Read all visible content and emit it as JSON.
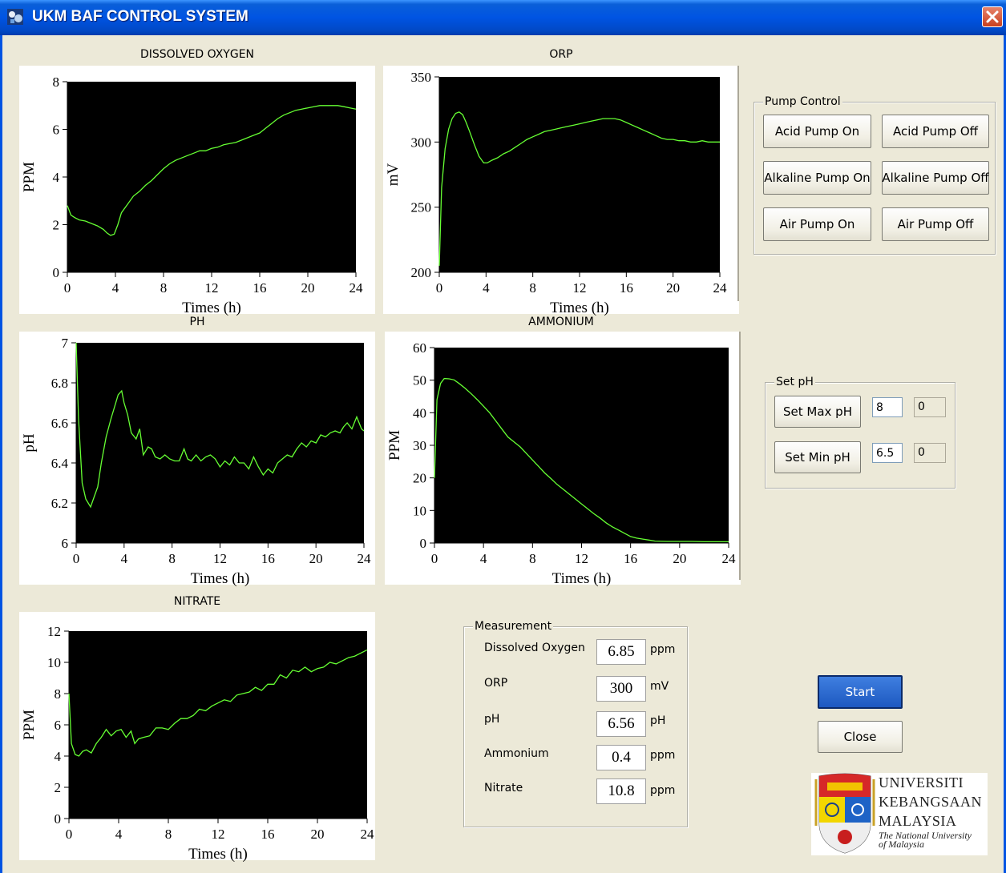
{
  "window": {
    "title": "UKM BAF CONTROL SYSTEM"
  },
  "chart_data": [
    {
      "id": "do",
      "type": "line",
      "title": "DISSOLVED OXYGEN",
      "xlabel": "Times (h)",
      "ylabel": "PPM",
      "xlim": [
        0,
        24
      ],
      "ylim": [
        0,
        8
      ],
      "xticks": [
        0,
        4,
        8,
        12,
        16,
        20,
        24
      ],
      "yticks": [
        0,
        2,
        4,
        6,
        8
      ],
      "line_color": "#66ff33",
      "background": "#000000",
      "series": [
        {
          "x": [
            0,
            0.3,
            0.6,
            1,
            1.5,
            2,
            2.5,
            3,
            3.3,
            3.6,
            3.9,
            4.2,
            4.5,
            5,
            5.5,
            6,
            6.5,
            7,
            7.5,
            8,
            8.5,
            9,
            9.5,
            10,
            10.5,
            11,
            11.5,
            12,
            12.5,
            13,
            13.5,
            14,
            14.5,
            15,
            15.5,
            16,
            16.5,
            17,
            17.5,
            18,
            18.5,
            19,
            19.5,
            20,
            20.5,
            21,
            21.5,
            22,
            22.5,
            23,
            23.5,
            24
          ],
          "y": [
            2.8,
            2.4,
            2.3,
            2.2,
            2.15,
            2.05,
            1.95,
            1.8,
            1.65,
            1.55,
            1.6,
            2,
            2.5,
            2.85,
            3.2,
            3.4,
            3.65,
            3.85,
            4.1,
            4.35,
            4.55,
            4.7,
            4.8,
            4.9,
            5.0,
            5.1,
            5.1,
            5.2,
            5.25,
            5.35,
            5.4,
            5.45,
            5.55,
            5.65,
            5.75,
            5.85,
            6.05,
            6.25,
            6.45,
            6.6,
            6.7,
            6.8,
            6.85,
            6.9,
            6.95,
            7.0,
            7.0,
            7.0,
            7.0,
            6.95,
            6.9,
            6.85
          ]
        }
      ]
    },
    {
      "id": "orp",
      "type": "line",
      "title": "ORP",
      "xlabel": "Times (h)",
      "ylabel": "mV",
      "xlim": [
        0,
        24
      ],
      "ylim": [
        200,
        350
      ],
      "xticks": [
        0,
        4,
        8,
        12,
        16,
        20,
        24
      ],
      "yticks": [
        200,
        250,
        300,
        350
      ],
      "line_color": "#66ff33",
      "background": "#000000",
      "series": [
        {
          "x": [
            0,
            0.2,
            0.5,
            0.8,
            1.1,
            1.4,
            1.7,
            2,
            2.3,
            2.6,
            3,
            3.4,
            3.8,
            4.1,
            4.5,
            5,
            5.5,
            6,
            6.5,
            7,
            7.5,
            8,
            8.5,
            9,
            9.5,
            10,
            10.5,
            11,
            11.5,
            12,
            12.5,
            13,
            13.5,
            14,
            14.5,
            15,
            15.5,
            16,
            16.5,
            17,
            17.5,
            18,
            18.5,
            19,
            19.5,
            20,
            20.5,
            21,
            21.5,
            22,
            22.5,
            23,
            23.5,
            24
          ],
          "y": [
            205,
            265,
            295,
            310,
            318,
            322,
            323,
            321,
            315,
            308,
            298,
            289,
            284,
            284,
            286,
            288,
            291,
            293,
            296,
            299,
            302,
            304,
            306,
            308,
            309,
            310,
            311,
            312,
            313,
            314,
            315,
            316,
            317,
            318,
            318,
            318,
            317,
            315,
            313,
            311,
            309,
            307,
            305,
            303,
            302,
            302,
            301,
            301,
            300,
            300,
            301,
            300,
            300,
            300
          ]
        }
      ]
    },
    {
      "id": "ph",
      "type": "line",
      "title": "PH",
      "xlabel": "Times (h)",
      "ylabel": "pH",
      "xlim": [
        0,
        24
      ],
      "ylim": [
        6,
        7
      ],
      "xticks": [
        0,
        4,
        8,
        12,
        16,
        20,
        24
      ],
      "yticks": [
        6,
        6.2,
        6.4,
        6.6,
        6.8,
        7
      ],
      "line_color": "#66ff33",
      "background": "#000000",
      "series": [
        {
          "x": [
            0,
            0.2,
            0.5,
            0.8,
            1.2,
            1.5,
            1.8,
            2.1,
            2.5,
            2.9,
            3.2,
            3.5,
            3.8,
            4,
            4.3,
            4.6,
            5,
            5.3,
            5.6,
            6,
            6.3,
            6.6,
            7,
            7.4,
            7.8,
            8.2,
            8.6,
            9,
            9.3,
            9.6,
            10,
            10.4,
            10.8,
            11.2,
            11.6,
            12,
            12.4,
            12.8,
            13.2,
            13.6,
            14,
            14.4,
            14.8,
            15.2,
            15.6,
            16,
            16.4,
            16.8,
            17.2,
            17.6,
            18,
            18.4,
            18.8,
            19.2,
            19.6,
            20,
            20.4,
            20.8,
            21.2,
            21.6,
            22,
            22.3,
            22.6,
            23,
            23.4,
            23.8,
            24
          ],
          "y": [
            7,
            6.62,
            6.3,
            6.22,
            6.18,
            6.23,
            6.28,
            6.4,
            6.53,
            6.62,
            6.68,
            6.74,
            6.76,
            6.7,
            6.64,
            6.55,
            6.52,
            6.57,
            6.44,
            6.48,
            6.47,
            6.43,
            6.42,
            6.44,
            6.42,
            6.41,
            6.41,
            6.47,
            6.42,
            6.41,
            6.44,
            6.41,
            6.43,
            6.44,
            6.42,
            6.38,
            6.41,
            6.39,
            6.43,
            6.4,
            6.4,
            6.37,
            6.43,
            6.38,
            6.34,
            6.37,
            6.35,
            6.4,
            6.42,
            6.44,
            6.43,
            6.47,
            6.5,
            6.48,
            6.51,
            6.5,
            6.54,
            6.53,
            6.55,
            6.56,
            6.55,
            6.58,
            6.6,
            6.57,
            6.63,
            6.57,
            6.56
          ]
        }
      ]
    },
    {
      "id": "ammonium",
      "type": "line",
      "title": "AMMONIUM",
      "xlabel": "Times (h)",
      "ylabel": "PPM",
      "xlim": [
        0,
        24
      ],
      "ylim": [
        0,
        60
      ],
      "xticks": [
        0,
        4,
        8,
        12,
        16,
        20,
        24
      ],
      "yticks": [
        0,
        10,
        20,
        30,
        40,
        50,
        60
      ],
      "line_color": "#66ff33",
      "background": "#000000",
      "series": [
        {
          "x": [
            0,
            0.2,
            0.5,
            0.8,
            1.2,
            1.6,
            2,
            2.5,
            3,
            3.5,
            4,
            4.5,
            5,
            5.5,
            6,
            6.5,
            7,
            7.5,
            8,
            8.5,
            9,
            9.5,
            10,
            10.5,
            11,
            11.5,
            12,
            12.5,
            13,
            13.5,
            14,
            14.5,
            15,
            15.5,
            16,
            16.5,
            17,
            17.5,
            18,
            19,
            20,
            21,
            22,
            23,
            24
          ],
          "y": [
            20,
            44,
            49,
            50.5,
            50.4,
            50.1,
            49,
            47.5,
            45.8,
            44,
            42,
            40,
            37.5,
            35,
            32.5,
            31,
            29.5,
            27.5,
            25.5,
            23.5,
            21.5,
            19.8,
            18,
            16.5,
            15,
            13.5,
            12,
            10.5,
            9,
            7.7,
            6.2,
            5,
            4,
            3,
            2,
            1.5,
            1.2,
            0.9,
            0.6,
            0.5,
            0.5,
            0.5,
            0.4,
            0.4,
            0.4
          ]
        }
      ]
    },
    {
      "id": "nitrate",
      "type": "line",
      "title": "NITRATE",
      "xlabel": "Times (h)",
      "ylabel": "PPM",
      "xlim": [
        0,
        24
      ],
      "ylim": [
        0,
        12
      ],
      "xticks": [
        0,
        4,
        8,
        12,
        16,
        20,
        24
      ],
      "yticks": [
        0,
        2,
        4,
        6,
        8,
        10,
        12
      ],
      "line_color": "#66ff33",
      "background": "#000000",
      "series": [
        {
          "x": [
            0,
            0.2,
            0.5,
            0.8,
            1.1,
            1.4,
            1.8,
            2.2,
            2.6,
            3,
            3.4,
            3.8,
            4.2,
            4.6,
            5,
            5.3,
            5.6,
            6,
            6.5,
            7,
            7.5,
            8,
            8.5,
            9,
            9.5,
            10,
            10.5,
            11,
            11.5,
            12,
            12.5,
            13,
            13.5,
            14,
            14.5,
            15,
            15.5,
            16,
            16.5,
            17,
            17.5,
            18,
            18.5,
            19,
            19.5,
            20,
            20.5,
            21,
            21.5,
            22,
            22.5,
            23,
            23.5,
            24
          ],
          "y": [
            8,
            4.8,
            4.1,
            4,
            4.3,
            4.4,
            4.2,
            4.8,
            5.2,
            5.7,
            5.3,
            5.6,
            5.7,
            5.2,
            5.6,
            4.8,
            5.1,
            5.2,
            5.3,
            5.8,
            5.8,
            5.7,
            6.1,
            6.4,
            6.4,
            6.6,
            7,
            6.9,
            7.2,
            7.4,
            7.6,
            7.5,
            7.9,
            8,
            8.1,
            8.4,
            8.2,
            8.6,
            8.6,
            9.2,
            9,
            9.5,
            9.4,
            9.7,
            9.4,
            9.6,
            9.7,
            10,
            9.9,
            10.1,
            10.3,
            10.4,
            10.6,
            10.8
          ]
        }
      ]
    }
  ],
  "pump_control": {
    "legend": "Pump Control",
    "acid_on": "Acid Pump On",
    "acid_off": "Acid Pump Off",
    "alkaline_on": "Alkaline Pump On",
    "alkaline_off": "Alkaline Pump Off",
    "air_on": "Air Pump On",
    "air_off": "Air Pump Off"
  },
  "set_ph": {
    "legend": "Set pH",
    "max_label": "Set Max pH",
    "max_input": "8",
    "max_current": "0",
    "min_label": "Set Min pH",
    "min_input": "6.5",
    "min_current": "0"
  },
  "measurement": {
    "legend": "Measurement",
    "rows": [
      {
        "label": "Dissolved Oxygen",
        "value": "6.85",
        "unit": "ppm"
      },
      {
        "label": "ORP",
        "value": "300",
        "unit": "mV"
      },
      {
        "label": "pH",
        "value": "6.56",
        "unit": "pH"
      },
      {
        "label": "Ammonium",
        "value": "0.4",
        "unit": "ppm"
      },
      {
        "label": "Nitrate",
        "value": "10.8",
        "unit": "ppm"
      }
    ]
  },
  "controls": {
    "start": "Start",
    "close": "Close"
  },
  "logo": {
    "line1": "UNIVERSITI",
    "line2": "KEBANGSAAN",
    "line3": "MALAYSIA",
    "tagline1": "The National University",
    "tagline2": "of Malaysia"
  }
}
